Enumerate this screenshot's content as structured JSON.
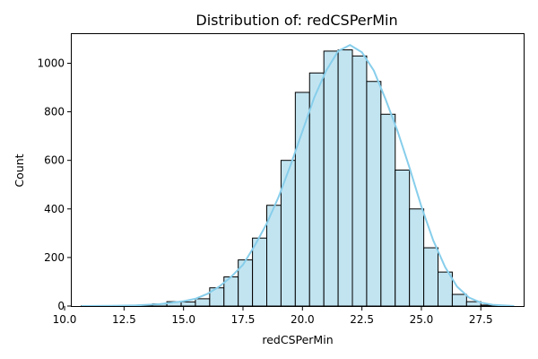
{
  "chart_data": {
    "type": "bar",
    "title": "Distribution of: redCSPerMin",
    "xlabel": "redCSPerMin",
    "ylabel": "Count",
    "xlim": [
      10.3,
      29.3
    ],
    "ylim": [
      0,
      1120
    ],
    "xticks": [
      10.0,
      12.5,
      15.0,
      17.5,
      20.0,
      22.5,
      25.0,
      27.5
    ],
    "xtick_labels": [
      "10.0",
      "12.5",
      "15.0",
      "17.5",
      "20.0",
      "22.5",
      "25.0",
      "27.5"
    ],
    "yticks": [
      0,
      200,
      400,
      600,
      800,
      1000
    ],
    "ytick_labels": [
      "0",
      "200",
      "400",
      "600",
      "800",
      "1000"
    ],
    "grid": false,
    "bins": {
      "edges": [
        10.7,
        11.3,
        11.9,
        12.5,
        13.1,
        13.7,
        14.3,
        14.9,
        15.5,
        16.1,
        16.7,
        17.3,
        17.9,
        18.5,
        19.1,
        19.7,
        20.3,
        20.9,
        21.5,
        22.1,
        22.7,
        23.3,
        23.9,
        24.5,
        25.1,
        25.7,
        26.3,
        26.9,
        27.5,
        28.1,
        28.7
      ],
      "counts": [
        1,
        1,
        1,
        1,
        4,
        9,
        18,
        17,
        30,
        75,
        120,
        190,
        280,
        415,
        600,
        880,
        960,
        1050,
        1055,
        1030,
        925,
        790,
        560,
        400,
        240,
        140,
        48,
        18,
        4,
        2
      ]
    },
    "kde": {
      "x": [
        10.7,
        12.0,
        13.0,
        14.0,
        14.5,
        15.0,
        15.5,
        16.0,
        16.5,
        17.0,
        17.5,
        18.0,
        18.5,
        19.0,
        19.5,
        20.0,
        20.5,
        21.0,
        21.5,
        22.0,
        22.5,
        23.0,
        23.5,
        24.0,
        24.5,
        25.0,
        25.5,
        26.0,
        26.5,
        27.0,
        27.5,
        28.0,
        28.9
      ],
      "y": [
        0,
        1,
        3,
        8,
        14,
        20,
        30,
        50,
        80,
        120,
        170,
        250,
        340,
        450,
        580,
        720,
        860,
        970,
        1050,
        1075,
        1045,
        970,
        850,
        720,
        570,
        410,
        270,
        160,
        80,
        35,
        14,
        5,
        0
      ]
    },
    "colors": {
      "bar_fill": "#c2e4f1",
      "bar_edge": "#000000",
      "kde_line": "#87ceeb"
    }
  }
}
